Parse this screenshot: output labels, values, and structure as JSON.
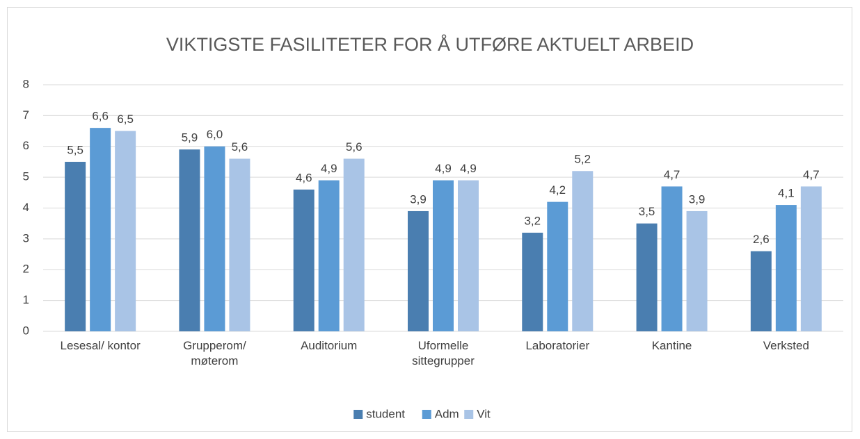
{
  "chart_data": {
    "type": "bar",
    "title": "VIKTIGSTE FASILITETER FOR Å UTFØRE AKTUELT ARBEID",
    "categories": [
      "Lesesal/ kontor",
      "Grupperom/ møterom",
      "Auditorium",
      "Uformelle sittegrupper",
      "Laboratorier",
      "Kantine",
      "Verksted"
    ],
    "series": [
      {
        "name": "student",
        "color": "#4a7eb0",
        "values": [
          5.5,
          5.9,
          4.6,
          3.9,
          3.2,
          3.5,
          2.6
        ],
        "value_labels": [
          "5,5",
          "5,9",
          "4,6",
          "3,9",
          "3,2",
          "3,5",
          "2,6"
        ]
      },
      {
        "name": "Adm",
        "color": "#5b9bd5",
        "values": [
          6.6,
          6.0,
          4.9,
          4.9,
          4.2,
          4.7,
          4.1
        ],
        "value_labels": [
          "6,6",
          "6,0",
          "4,9",
          "4,9",
          "4,2",
          "4,7",
          "4,1"
        ]
      },
      {
        "name": "Vit",
        "color": "#a9c4e6",
        "values": [
          6.5,
          5.6,
          5.6,
          4.9,
          5.2,
          3.9,
          4.7
        ],
        "value_labels": [
          "6,5",
          "5,6",
          "5,6",
          "4,9",
          "5,2",
          "3,9",
          "4,7"
        ]
      }
    ],
    "ylim": [
      0,
      8
    ],
    "yticks": [
      0,
      1,
      2,
      3,
      4,
      5,
      6,
      7,
      8
    ],
    "grid": true,
    "legend": "bottom"
  }
}
